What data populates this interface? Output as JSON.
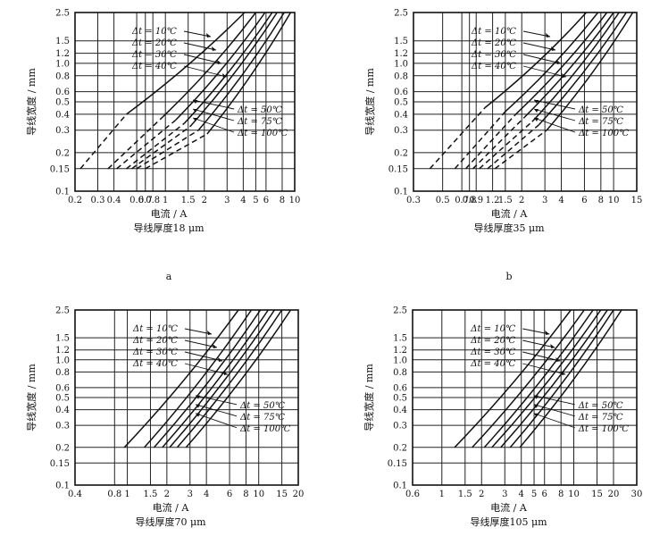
{
  "chart_data": [
    {
      "type": "line",
      "panel_label": "a",
      "xlabel": "电流 / A",
      "ylabel": "导线宽度 / mm",
      "caption": "导线厚度18 μm",
      "x_scale": "log",
      "y_scale": "log",
      "xlim": [
        0.2,
        10
      ],
      "ylim": [
        0.1,
        2.5
      ],
      "x_ticks": [
        {
          "v": 0.2,
          "label": "0.2"
        },
        {
          "v": 0.3,
          "label": "0.3"
        },
        {
          "v": 0.4,
          "label": "0.4"
        },
        {
          "v": 0.6,
          "label": "0.6"
        },
        {
          "v": 0.7,
          "label": "0.7"
        },
        {
          "v": 0.8,
          "label": "0.8"
        },
        {
          "v": 1,
          "label": "1"
        },
        {
          "v": 1.5,
          "label": "1.5"
        },
        {
          "v": 2,
          "label": "2"
        },
        {
          "v": 3,
          "label": "3"
        },
        {
          "v": 4,
          "label": "4"
        },
        {
          "v": 5,
          "label": "5"
        },
        {
          "v": 6,
          "label": "6"
        },
        {
          "v": 8,
          "label": "8"
        },
        {
          "v": 10,
          "label": "10"
        }
      ],
      "y_ticks": [
        {
          "v": 0.1,
          "label": "0.1"
        },
        {
          "v": 0.15,
          "label": "0.15"
        },
        {
          "v": 0.2,
          "label": "0.2"
        },
        {
          "v": 0.3,
          "label": "0.3"
        },
        {
          "v": 0.4,
          "label": "0.4"
        },
        {
          "v": 0.5,
          "label": "0.5"
        },
        {
          "v": 0.6,
          "label": "0.6"
        },
        {
          "v": 0.8,
          "label": "0.8"
        },
        {
          "v": 1.0,
          "label": "1.0"
        },
        {
          "v": 1.2,
          "label": "1.2"
        },
        {
          "v": 1.5,
          "label": "1.5"
        },
        {
          "v": 2.5,
          "label": "2.5"
        }
      ],
      "series": [
        {
          "name": "Δt = 10℃",
          "dashed": [
            [
              0.22,
              0.15
            ],
            [
              0.5,
              0.4
            ]
          ],
          "solid": [
            [
              0.5,
              0.4
            ],
            [
              4.1,
              2.5
            ]
          ]
        },
        {
          "name": "Δt = 20℃",
          "dashed": [
            [
              0.36,
              0.15
            ],
            [
              0.95,
              0.38
            ]
          ],
          "solid": [
            [
              0.95,
              0.38
            ],
            [
              5.0,
              2.5
            ]
          ]
        },
        {
          "name": "Δt = 30℃",
          "dashed": [
            [
              0.42,
              0.15
            ],
            [
              1.2,
              0.36
            ]
          ],
          "solid": [
            [
              1.2,
              0.36
            ],
            [
              5.9,
              2.5
            ]
          ]
        },
        {
          "name": "Δt = 40℃",
          "dashed": [
            [
              0.5,
              0.15
            ],
            [
              1.4,
              0.34
            ]
          ],
          "solid": [
            [
              1.4,
              0.34
            ],
            [
              6.7,
              2.5
            ]
          ]
        },
        {
          "name": "Δt = 50℃",
          "dashed": [
            [
              0.55,
              0.15
            ],
            [
              1.55,
              0.32
            ]
          ],
          "solid": [
            [
              1.55,
              0.32
            ],
            [
              7.3,
              2.5
            ]
          ]
        },
        {
          "name": "Δt = 75℃",
          "dashed": [
            [
              0.6,
              0.15
            ],
            [
              1.8,
              0.3
            ]
          ],
          "solid": [
            [
              1.8,
              0.3
            ],
            [
              8.3,
              2.5
            ]
          ]
        },
        {
          "name": "Δt = 100℃",
          "dashed": [
            [
              0.7,
              0.15
            ],
            [
              2.1,
              0.28
            ]
          ],
          "solid": [
            [
              2.1,
              0.28
            ],
            [
              9.3,
              2.5
            ]
          ]
        }
      ],
      "annotations_upper": [
        "Δt = 10℃",
        "Δt = 20℃",
        "Δt = 30℃",
        "Δt = 40℃"
      ],
      "annotations_lower": [
        "Δt =  50℃",
        "Δt =  75℃",
        "Δt = 100℃"
      ]
    },
    {
      "type": "line",
      "panel_label": "b",
      "xlabel": "电流 / A",
      "ylabel": "导线宽度 / mm",
      "caption": "导线厚度35 μm",
      "x_scale": "log",
      "y_scale": "log",
      "xlim": [
        0.3,
        15
      ],
      "ylim": [
        0.1,
        2.5
      ],
      "x_ticks": [
        {
          "v": 0.3,
          "label": "0.3"
        },
        {
          "v": 0.5,
          "label": "0.5"
        },
        {
          "v": 0.7,
          "label": "0.7"
        },
        {
          "v": 0.8,
          "label": "0.8"
        },
        {
          "v": 0.9,
          "label": "0.9"
        },
        {
          "v": 1.2,
          "label": "1.2"
        },
        {
          "v": 1.5,
          "label": "1.5"
        },
        {
          "v": 2,
          "label": "2"
        },
        {
          "v": 3,
          "label": "3"
        },
        {
          "v": 4,
          "label": "4"
        },
        {
          "v": 6,
          "label": "6"
        },
        {
          "v": 8,
          "label": "8"
        },
        {
          "v": 10,
          "label": "10"
        },
        {
          "v": 15,
          "label": "15"
        }
      ],
      "y_ticks": [
        {
          "v": 0.1,
          "label": "0.1"
        },
        {
          "v": 0.15,
          "label": "0.15"
        },
        {
          "v": 0.2,
          "label": "0.2"
        },
        {
          "v": 0.3,
          "label": "0.3"
        },
        {
          "v": 0.4,
          "label": "0.4"
        },
        {
          "v": 0.5,
          "label": "0.5"
        },
        {
          "v": 0.6,
          "label": "0.6"
        },
        {
          "v": 0.8,
          "label": "0.8"
        },
        {
          "v": 1.0,
          "label": "1.0"
        },
        {
          "v": 1.2,
          "label": "1.2"
        },
        {
          "v": 1.5,
          "label": "1.5"
        },
        {
          "v": 2.5,
          "label": "2.5"
        }
      ],
      "series": [
        {
          "name": "Δt = 10℃",
          "dashed": [
            [
              0.4,
              0.15
            ],
            [
              1.05,
              0.45
            ]
          ],
          "solid": [
            [
              1.05,
              0.45
            ],
            [
              6.2,
              2.5
            ]
          ]
        },
        {
          "name": "Δt = 20℃",
          "dashed": [
            [
              0.62,
              0.15
            ],
            [
              1.5,
              0.42
            ]
          ],
          "solid": [
            [
              1.5,
              0.42
            ],
            [
              7.6,
              2.5
            ]
          ]
        },
        {
          "name": "Δt = 30℃",
          "dashed": [
            [
              0.75,
              0.15
            ],
            [
              1.8,
              0.4
            ]
          ],
          "solid": [
            [
              1.8,
              0.4
            ],
            [
              8.9,
              2.5
            ]
          ]
        },
        {
          "name": "Δt = 40℃",
          "dashed": [
            [
              0.85,
              0.15
            ],
            [
              2.1,
              0.38
            ]
          ],
          "solid": [
            [
              2.1,
              0.38
            ],
            [
              10.0,
              2.5
            ]
          ]
        },
        {
          "name": "Δt = 50℃",
          "dashed": [
            [
              0.95,
              0.15
            ],
            [
              2.4,
              0.35
            ]
          ],
          "solid": [
            [
              2.4,
              0.35
            ],
            [
              11.0,
              2.5
            ]
          ]
        },
        {
          "name": "Δt = 75℃",
          "dashed": [
            [
              1.1,
              0.15
            ],
            [
              2.7,
              0.33
            ]
          ],
          "solid": [
            [
              2.7,
              0.33
            ],
            [
              12.5,
              2.5
            ]
          ]
        },
        {
          "name": "Δt = 100℃",
          "dashed": [
            [
              1.25,
              0.15
            ],
            [
              3.1,
              0.3
            ]
          ],
          "solid": [
            [
              3.1,
              0.3
            ],
            [
              14.0,
              2.5
            ]
          ]
        }
      ],
      "annotations_upper": [
        "Δt = 10℃",
        "Δt = 20℃",
        "Δt = 30℃",
        "Δt = 40℃"
      ],
      "annotations_lower": [
        "Δt =  50℃",
        "Δt =  75℃",
        "Δt = 100℃"
      ]
    },
    {
      "type": "line",
      "panel_label": "",
      "xlabel": "电流 / A",
      "ylabel": "导线宽度 / mm",
      "caption": "导线厚度70 μm",
      "x_scale": "log",
      "y_scale": "log",
      "xlim": [
        0.4,
        20
      ],
      "ylim": [
        0.1,
        2.5
      ],
      "x_ticks": [
        {
          "v": 0.4,
          "label": "0.4"
        },
        {
          "v": 0.8,
          "label": "0.8"
        },
        {
          "v": 1,
          "label": "1"
        },
        {
          "v": 1.5,
          "label": "1.5"
        },
        {
          "v": 2,
          "label": "2"
        },
        {
          "v": 3,
          "label": "3"
        },
        {
          "v": 4,
          "label": "4"
        },
        {
          "v": 6,
          "label": "6"
        },
        {
          "v": 8,
          "label": "8"
        },
        {
          "v": 10,
          "label": "10"
        },
        {
          "v": 15,
          "label": "15"
        },
        {
          "v": 20,
          "label": "20"
        }
      ],
      "y_ticks": [
        {
          "v": 0.1,
          "label": "0.1"
        },
        {
          "v": 0.15,
          "label": "0.15"
        },
        {
          "v": 0.2,
          "label": "0.2"
        },
        {
          "v": 0.3,
          "label": "0.3"
        },
        {
          "v": 0.4,
          "label": "0.4"
        },
        {
          "v": 0.5,
          "label": "0.5"
        },
        {
          "v": 0.6,
          "label": "0.6"
        },
        {
          "v": 0.8,
          "label": "0.8"
        },
        {
          "v": 1.0,
          "label": "1.0"
        },
        {
          "v": 1.2,
          "label": "1.2"
        },
        {
          "v": 1.5,
          "label": "1.5"
        },
        {
          "v": 2.5,
          "label": "2.5"
        }
      ],
      "series": [
        {
          "name": "Δt = 10℃",
          "solid": [
            [
              0.95,
              0.2
            ],
            [
              7.0,
              2.5
            ]
          ]
        },
        {
          "name": "Δt = 20℃",
          "solid": [
            [
              1.35,
              0.2
            ],
            [
              8.8,
              2.5
            ]
          ]
        },
        {
          "name": "Δt = 30℃",
          "solid": [
            [
              1.6,
              0.2
            ],
            [
              10.3,
              2.5
            ]
          ]
        },
        {
          "name": "Δt = 40℃",
          "solid": [
            [
              1.85,
              0.2
            ],
            [
              11.8,
              2.5
            ]
          ]
        },
        {
          "name": "Δt = 50℃",
          "solid": [
            [
              2.1,
              0.2
            ],
            [
              13.2,
              2.5
            ]
          ]
        },
        {
          "name": "Δt = 75℃",
          "solid": [
            [
              2.4,
              0.2
            ],
            [
              15.0,
              2.5
            ]
          ]
        },
        {
          "name": "Δt = 100℃",
          "solid": [
            [
              2.8,
              0.2
            ],
            [
              17.5,
              2.5
            ]
          ]
        }
      ],
      "annotations_upper": [
        "Δt = 10℃",
        "Δt = 20℃",
        "Δt = 30℃",
        "Δt = 40℃"
      ],
      "annotations_lower": [
        "Δt =  50℃",
        "Δt =  75℃",
        "Δt = 100℃"
      ]
    },
    {
      "type": "line",
      "panel_label": "",
      "xlabel": "电流 / A",
      "ylabel": "导线宽度 / mm",
      "caption": "导线厚度105 μm",
      "x_scale": "log",
      "y_scale": "log",
      "xlim": [
        0.6,
        30
      ],
      "ylim": [
        0.1,
        2.5
      ],
      "x_ticks": [
        {
          "v": 0.6,
          "label": "0.6"
        },
        {
          "v": 1,
          "label": "1"
        },
        {
          "v": 1.5,
          "label": "1.5"
        },
        {
          "v": 2,
          "label": "2"
        },
        {
          "v": 3,
          "label": "3"
        },
        {
          "v": 4,
          "label": "4"
        },
        {
          "v": 5,
          "label": "5"
        },
        {
          "v": 6,
          "label": "6"
        },
        {
          "v": 8,
          "label": "8"
        },
        {
          "v": 10,
          "label": "10"
        },
        {
          "v": 15,
          "label": "15"
        },
        {
          "v": 20,
          "label": "20"
        },
        {
          "v": 30,
          "label": "30"
        }
      ],
      "y_ticks": [
        {
          "v": 0.1,
          "label": "0.1"
        },
        {
          "v": 0.15,
          "label": "0.15"
        },
        {
          "v": 0.2,
          "label": "0.2"
        },
        {
          "v": 0.3,
          "label": "0.3"
        },
        {
          "v": 0.4,
          "label": "0.4"
        },
        {
          "v": 0.5,
          "label": "0.5"
        },
        {
          "v": 0.6,
          "label": "0.6"
        },
        {
          "v": 0.8,
          "label": "0.8"
        },
        {
          "v": 1.0,
          "label": "1.0"
        },
        {
          "v": 1.2,
          "label": "1.2"
        },
        {
          "v": 1.5,
          "label": "1.5"
        },
        {
          "v": 2.5,
          "label": "2.5"
        }
      ],
      "series": [
        {
          "name": "Δt = 10℃",
          "solid": [
            [
              1.25,
              0.2
            ],
            [
              9.5,
              2.5
            ]
          ]
        },
        {
          "name": "Δt = 20℃",
          "solid": [
            [
              1.7,
              0.2
            ],
            [
              12.0,
              2.5
            ]
          ]
        },
        {
          "name": "Δt = 30℃",
          "solid": [
            [
              2.1,
              0.2
            ],
            [
              14.0,
              2.5
            ]
          ]
        },
        {
          "name": "Δt = 40℃",
          "solid": [
            [
              2.4,
              0.2
            ],
            [
              16.0,
              2.5
            ]
          ]
        },
        {
          "name": "Δt = 50℃",
          "solid": [
            [
              2.8,
              0.2
            ],
            [
              18.0,
              2.5
            ]
          ]
        },
        {
          "name": "Δt = 75℃",
          "solid": [
            [
              3.3,
              0.2
            ],
            [
              20.0,
              2.5
            ]
          ]
        },
        {
          "name": "Δt = 100℃",
          "solid": [
            [
              3.9,
              0.2
            ],
            [
              23.0,
              2.5
            ]
          ]
        }
      ],
      "annotations_upper": [
        "Δt = 10℃",
        "Δt = 20℃",
        "Δt = 30℃",
        "Δt = 40℃"
      ],
      "annotations_lower": [
        "Δt =  50℃",
        "Δt =  75℃",
        "Δt = 100℃"
      ]
    }
  ]
}
